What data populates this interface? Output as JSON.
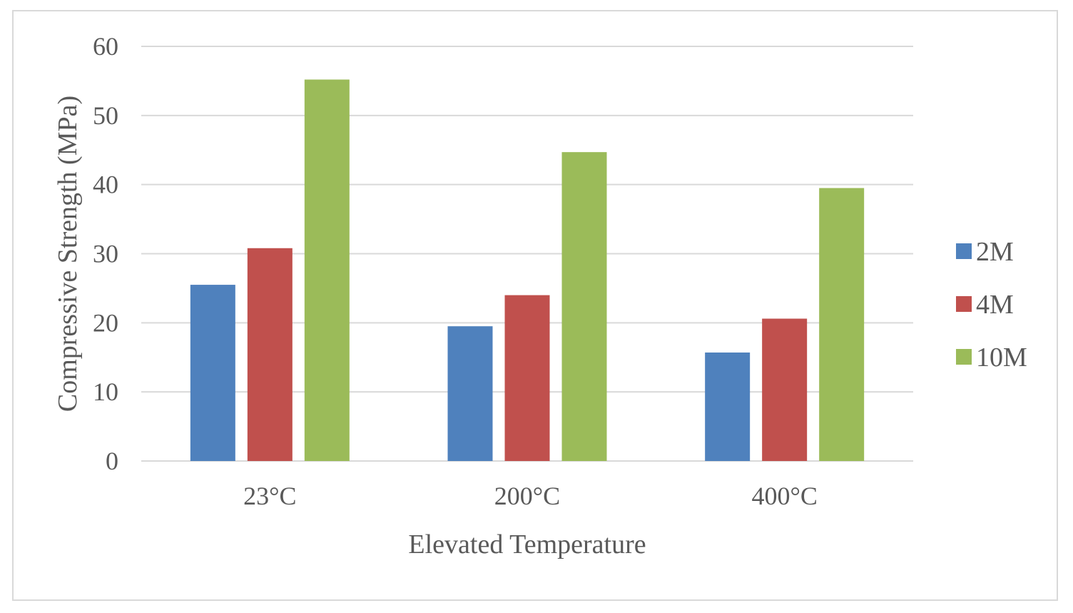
{
  "chart_data": {
    "type": "bar",
    "title": "",
    "xlabel": "Elevated Temperature",
    "ylabel": "Compressive Strength (MPa)",
    "categories": [
      "23°C",
      "200°C",
      "400°C"
    ],
    "series": [
      {
        "name": "2M",
        "values": [
          25.5,
          19.5,
          15.7
        ],
        "color": "#4f81bd"
      },
      {
        "name": "4M",
        "values": [
          30.8,
          24.0,
          20.6
        ],
        "color": "#c0504d"
      },
      {
        "name": "10M",
        "values": [
          55.2,
          44.7,
          39.5
        ],
        "color": "#9bbb59"
      }
    ],
    "ylim": [
      0,
      60
    ],
    "yticks": [
      0,
      10,
      20,
      30,
      40,
      50,
      60
    ],
    "grid": true,
    "legend_position": "right"
  }
}
